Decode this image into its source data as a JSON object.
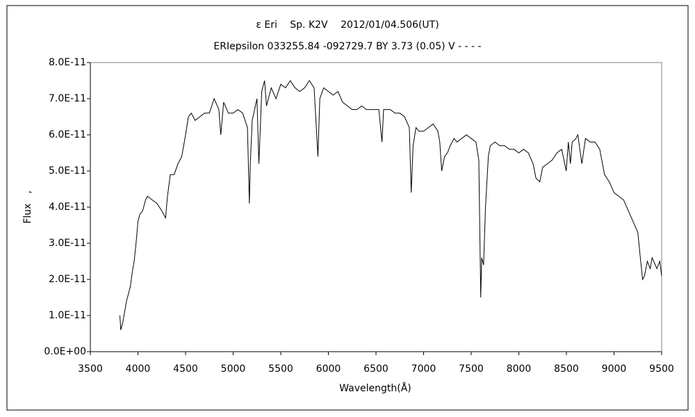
{
  "chart_data": {
    "type": "line",
    "title": "ε Eri　 Sp. K2V　 2012/01/04.506(UT)",
    "subtitle": "ERIepsilon 033255.84 -092729.7 BY 3.73 (0.05) V - - - -",
    "x_label": "Wavelength(Å)",
    "y_label": "Flux　,",
    "x": [
      3810,
      3820,
      3840,
      3860,
      3880,
      3900,
      3920,
      3940,
      3960,
      3980,
      4000,
      4020,
      4050,
      4080,
      4100,
      4150,
      4200,
      4250,
      4290,
      4310,
      4340,
      4380,
      4420,
      4460,
      4500,
      4530,
      4560,
      4600,
      4650,
      4700,
      4750,
      4800,
      4850,
      4870,
      4900,
      4950,
      5000,
      5050,
      5100,
      5150,
      5170,
      5180,
      5200,
      5250,
      5270,
      5300,
      5330,
      5350,
      5400,
      5450,
      5500,
      5550,
      5600,
      5650,
      5700,
      5750,
      5800,
      5850,
      5890,
      5910,
      5950,
      6000,
      6050,
      6100,
      6150,
      6200,
      6250,
      6300,
      6350,
      6400,
      6450,
      6500,
      6530,
      6563,
      6580,
      6650,
      6700,
      6750,
      6800,
      6850,
      6870,
      6890,
      6920,
      6950,
      7000,
      7050,
      7100,
      7150,
      7170,
      7190,
      7220,
      7250,
      7280,
      7320,
      7350,
      7400,
      7450,
      7500,
      7550,
      7580,
      7600,
      7610,
      7630,
      7650,
      7680,
      7700,
      7750,
      7800,
      7850,
      7900,
      7950,
      8000,
      8050,
      8100,
      8150,
      8180,
      8220,
      8250,
      8300,
      8350,
      8400,
      8450,
      8498,
      8520,
      8542,
      8560,
      8600,
      8620,
      8662,
      8700,
      8750,
      8800,
      8850,
      8900,
      8950,
      9000,
      9050,
      9100,
      9150,
      9200,
      9250,
      9280,
      9300,
      9320,
      9350,
      9380,
      9400,
      9450,
      9480,
      9500
    ],
    "series": [
      {
        "color": "#000000",
        "values": [
          1e-11,
          6e-12,
          8e-12,
          1.1e-11,
          1.4e-11,
          1.6e-11,
          1.8e-11,
          2.2e-11,
          2.5e-11,
          3e-11,
          3.6e-11,
          3.8e-11,
          3.9e-11,
          4.2e-11,
          4.3e-11,
          4.2e-11,
          4.1e-11,
          3.9e-11,
          3.7e-11,
          4.3e-11,
          4.9e-11,
          4.9e-11,
          5.2e-11,
          5.4e-11,
          6e-11,
          6.5e-11,
          6.6e-11,
          6.4e-11,
          6.5e-11,
          6.6e-11,
          6.6e-11,
          7e-11,
          6.7e-11,
          6e-11,
          6.9e-11,
          6.6e-11,
          6.6e-11,
          6.7e-11,
          6.6e-11,
          6.2e-11,
          4.1e-11,
          5.2e-11,
          6.4e-11,
          7e-11,
          5.2e-11,
          7.2e-11,
          7.5e-11,
          6.8e-11,
          7.3e-11,
          7e-11,
          7.4e-11,
          7.3e-11,
          7.5e-11,
          7.3e-11,
          7.2e-11,
          7.3e-11,
          7.5e-11,
          7.3e-11,
          5.4e-11,
          7e-11,
          7.3e-11,
          7.2e-11,
          7.1e-11,
          7.2e-11,
          6.9e-11,
          6.8e-11,
          6.7e-11,
          6.7e-11,
          6.8e-11,
          6.7e-11,
          6.7e-11,
          6.7e-11,
          6.7e-11,
          5.8e-11,
          6.7e-11,
          6.7e-11,
          6.6e-11,
          6.6e-11,
          6.5e-11,
          6.2e-11,
          4.4e-11,
          5.7e-11,
          6.2e-11,
          6.1e-11,
          6.1e-11,
          6.2e-11,
          6.3e-11,
          6.1e-11,
          5.8e-11,
          5e-11,
          5.4e-11,
          5.5e-11,
          5.7e-11,
          5.9e-11,
          5.8e-11,
          5.9e-11,
          6e-11,
          5.9e-11,
          5.8e-11,
          5.3e-11,
          1.5e-11,
          2.6e-11,
          2.4e-11,
          4e-11,
          5.4e-11,
          5.7e-11,
          5.8e-11,
          5.7e-11,
          5.7e-11,
          5.6e-11,
          5.6e-11,
          5.5e-11,
          5.6e-11,
          5.5e-11,
          5.2e-11,
          4.8e-11,
          4.7e-11,
          5.1e-11,
          5.2e-11,
          5.3e-11,
          5.5e-11,
          5.6e-11,
          5e-11,
          5.8e-11,
          5.2e-11,
          5.8e-11,
          5.9e-11,
          6e-11,
          5.2e-11,
          5.9e-11,
          5.8e-11,
          5.8e-11,
          5.6e-11,
          4.9e-11,
          4.7e-11,
          4.4e-11,
          4.3e-11,
          4.2e-11,
          3.9e-11,
          3.6e-11,
          3.3e-11,
          2.5e-11,
          2e-11,
          2.1e-11,
          2.5e-11,
          2.3e-11,
          2.6e-11,
          2.3e-11,
          2.5e-11,
          2.1e-11
        ]
      }
    ],
    "xlim": [
      3500,
      9500
    ],
    "xticks": [
      3500,
      4000,
      4500,
      5000,
      5500,
      6000,
      6500,
      7000,
      7500,
      8000,
      8500,
      9000,
      9500
    ],
    "ylim": [
      0,
      8e-11
    ],
    "yticks": [
      {
        "value": 0,
        "label": "0.0E+00"
      },
      {
        "value": 1e-11,
        "label": "1.0E-11"
      },
      {
        "value": 2e-11,
        "label": "2.0E-11"
      },
      {
        "value": 3e-11,
        "label": "3.0E-11"
      },
      {
        "value": 4e-11,
        "label": "4.0E-11"
      },
      {
        "value": 5e-11,
        "label": "5.0E-11"
      },
      {
        "value": 6e-11,
        "label": "6.0E-11"
      },
      {
        "value": 7e-11,
        "label": "7.0E-11"
      },
      {
        "value": 8e-11,
        "label": "8.0E-11"
      }
    ]
  }
}
